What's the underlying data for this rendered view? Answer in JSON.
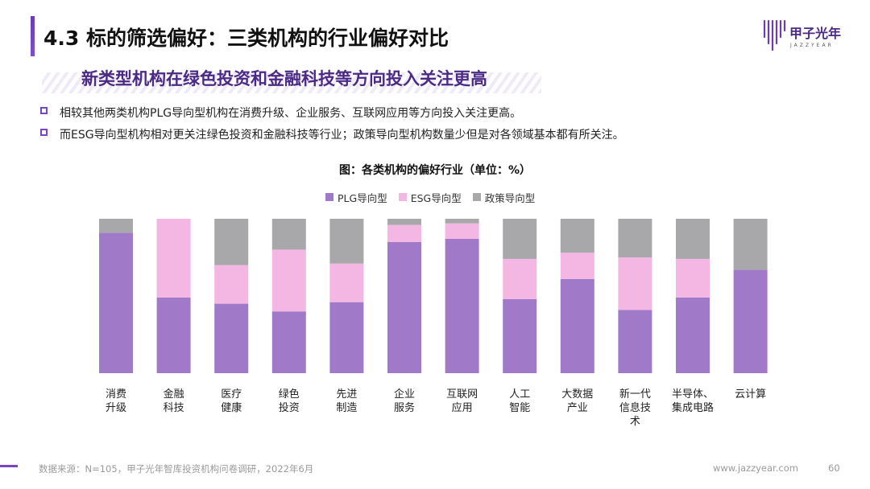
{
  "header": {
    "title": "4.3 标的筛选偏好：三类机构的行业偏好对比",
    "logo_text": "甲子光年",
    "logo_sub": "JAZZYEAR"
  },
  "subtitle": "新类型机构在绿色投资和金融科技等方向投入关注更高",
  "bullets": [
    "相较其他两类机构PLG导向型机构在消费升级、企业服务、互联网应用等方向投入关注更高。",
    "而ESG导向型机构相对更关注绿色投资和金融科技等行业；政策导向型机构数量少但是对各领域基本都有所关注。"
  ],
  "colors": {
    "plg": "#a07ac8",
    "esg": "#f4b6e2",
    "policy": "#a8a7aa",
    "accent": "#7a45c2"
  },
  "chart_data": {
    "type": "bar",
    "stacked": true,
    "normalized": true,
    "title": "图：各类机构的偏好行业（单位：%）",
    "categories": [
      "消费\n升级",
      "金融\n科技",
      "医疗\n健康",
      "绿色\n投资",
      "先进\n制造",
      "企业\n服务",
      "互联网\n应用",
      "人工\n智能",
      "大数据\n产业",
      "新一代\n信息技\n术",
      "半导体、\n集成电路",
      "云计算"
    ],
    "series": [
      {
        "name": "PLG导向型",
        "values": [
          91,
          49,
          45,
          40,
          46,
          85,
          87,
          48,
          61,
          41,
          49,
          67
        ]
      },
      {
        "name": "ESG导向型",
        "values": [
          0,
          51,
          25,
          40,
          25,
          11,
          10,
          26,
          17,
          34,
          25,
          0
        ]
      },
      {
        "name": "政策导向型",
        "values": [
          9,
          0,
          30,
          20,
          29,
          4,
          3,
          26,
          22,
          25,
          26,
          33
        ]
      }
    ],
    "ylim": [
      0,
      100
    ],
    "legend_position": "top",
    "grid": false
  },
  "footer": {
    "source": "数据来源：N=105，甲子光年智库投资机构问卷调研，2022年6月",
    "site": "www.jazzyear.com",
    "page": "60"
  }
}
